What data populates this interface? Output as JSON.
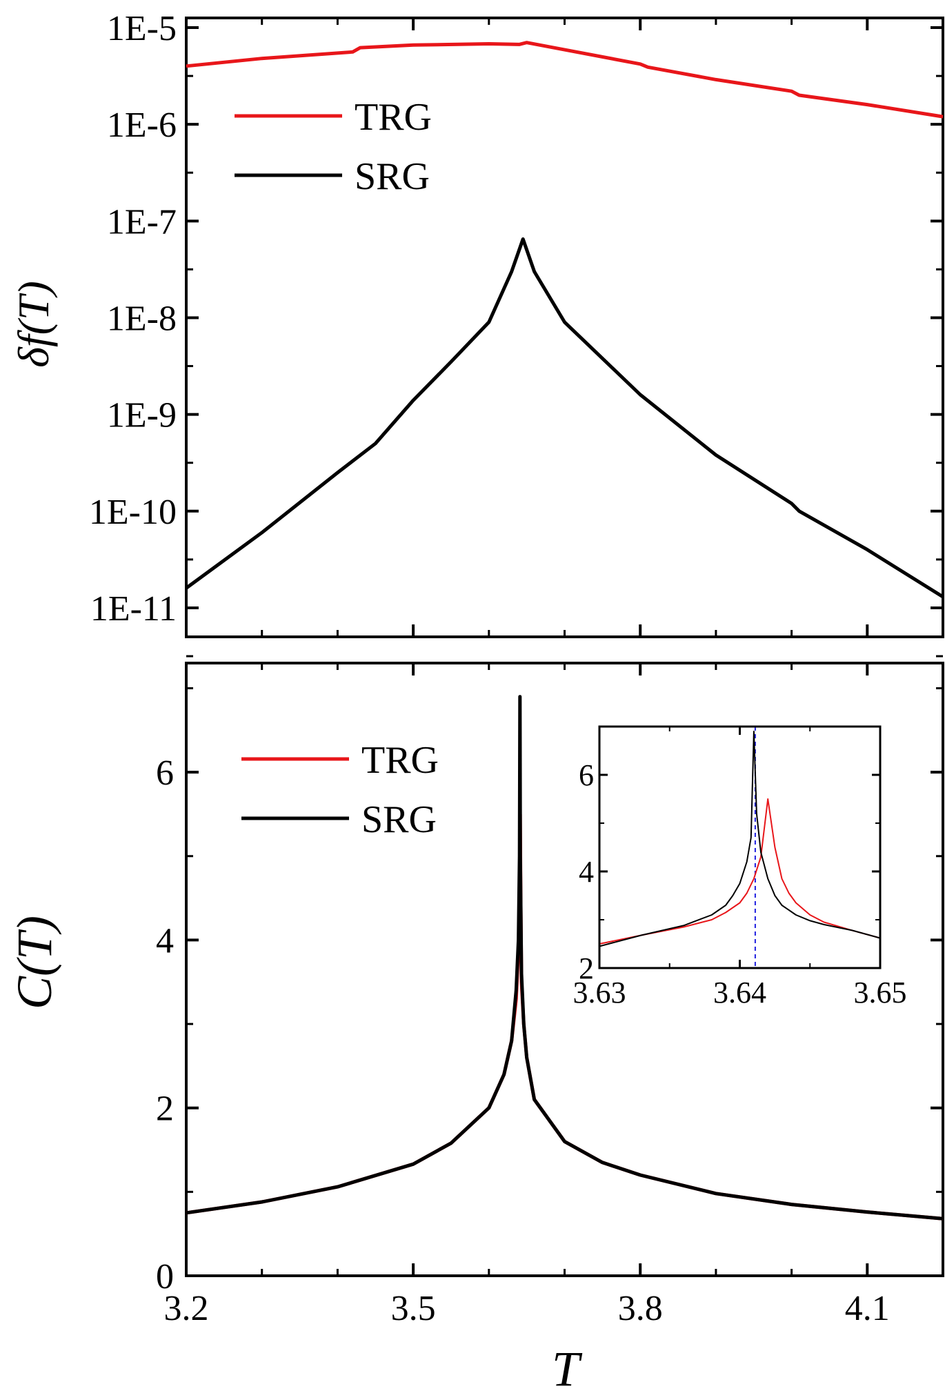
{
  "chart_data": [
    {
      "type": "line",
      "panel": "top",
      "ylabel": "δf(T)",
      "xlabel": "",
      "xlim": [
        3.2,
        4.2
      ],
      "ylim_log10": [
        -11.3,
        -4.9
      ],
      "yscale": "log",
      "y_tick_labels": [
        "1E-5",
        "1E-6",
        "1E-7",
        "1E-8",
        "1E-9",
        "1E-10",
        "1E-11"
      ],
      "y_tick_exponents": [
        -5,
        -6,
        -7,
        -8,
        -9,
        -10,
        -11
      ],
      "x_ticks": [
        3.2,
        3.5,
        3.8,
        4.1
      ],
      "legend": "upper-left",
      "series": [
        {
          "name": "TRG",
          "color": "#e8161a",
          "x": [
            3.2,
            3.3,
            3.42,
            3.43,
            3.5,
            3.6,
            3.64,
            3.65,
            3.7,
            3.8,
            3.81,
            3.9,
            4.0,
            4.01,
            4.1,
            4.2
          ],
          "y": [
            4e-06,
            4.8e-06,
            5.6e-06,
            6.2e-06,
            6.6e-06,
            6.8e-06,
            6.7e-06,
            7e-06,
            5.9e-06,
            4.2e-06,
            3.9e-06,
            2.9e-06,
            2.2e-06,
            2e-06,
            1.6e-06,
            1.2e-06
          ]
        },
        {
          "name": "SRG",
          "color": "#000000",
          "x": [
            3.2,
            3.3,
            3.4,
            3.45,
            3.5,
            3.55,
            3.6,
            3.63,
            3.645,
            3.66,
            3.7,
            3.75,
            3.8,
            3.9,
            4.0,
            4.01,
            4.1,
            4.2
          ],
          "y": [
            1.6e-11,
            6e-11,
            2.5e-10,
            5e-10,
            1.4e-09,
            3.5e-09,
            9e-09,
            3e-08,
            6.5e-08,
            3e-08,
            9e-09,
            3.8e-09,
            1.6e-09,
            3.8e-10,
            1.2e-10,
            1e-10,
            4e-11,
            1.3e-11
          ]
        }
      ]
    },
    {
      "type": "line",
      "panel": "bottom",
      "ylabel": "C(T)",
      "xlabel": "T",
      "xlim": [
        3.2,
        4.2
      ],
      "ylim": [
        0,
        7.3
      ],
      "x_ticks": [
        3.2,
        3.5,
        3.8,
        4.1
      ],
      "x_tick_labels": [
        "3.2",
        "3.5",
        "3.8",
        "4.1"
      ],
      "y_ticks": [
        0,
        2,
        4,
        6
      ],
      "y_tick_labels": [
        "0",
        "2",
        "4",
        "6"
      ],
      "legend": "upper-left",
      "series": [
        {
          "name": "TRG",
          "color": "#e8161a",
          "x": [
            3.2,
            3.3,
            3.4,
            3.5,
            3.55,
            3.6,
            3.62,
            3.63,
            3.636,
            3.639,
            3.6405,
            3.6413,
            3.642,
            3.643,
            3.646,
            3.65,
            3.66,
            3.7,
            3.75,
            3.8,
            3.9,
            4.0,
            4.1,
            4.2
          ],
          "y": [
            0.75,
            0.88,
            1.06,
            1.33,
            1.58,
            2.0,
            2.4,
            2.8,
            3.3,
            3.9,
            4.4,
            5.5,
            4.5,
            3.5,
            3.0,
            2.6,
            2.1,
            1.6,
            1.35,
            1.2,
            0.98,
            0.85,
            0.76,
            0.68
          ]
        },
        {
          "name": "SRG",
          "color": "#000000",
          "x": [
            3.2,
            3.3,
            3.4,
            3.5,
            3.55,
            3.6,
            3.62,
            3.63,
            3.636,
            3.639,
            3.6405,
            3.641,
            3.6415,
            3.643,
            3.646,
            3.65,
            3.66,
            3.7,
            3.75,
            3.8,
            3.9,
            4.0,
            4.1,
            4.2
          ],
          "y": [
            0.75,
            0.88,
            1.06,
            1.33,
            1.58,
            2.0,
            2.4,
            2.8,
            3.4,
            4.0,
            5.0,
            6.9,
            5.0,
            3.6,
            3.0,
            2.6,
            2.1,
            1.6,
            1.35,
            1.2,
            0.98,
            0.85,
            0.76,
            0.68
          ]
        }
      ]
    },
    {
      "type": "line",
      "panel": "inset",
      "xlim": [
        3.63,
        3.65
      ],
      "ylim": [
        2,
        7
      ],
      "x_ticks": [
        3.63,
        3.64,
        3.65
      ],
      "x_tick_labels": [
        "3.63",
        "3.64",
        "3.65"
      ],
      "y_ticks": [
        2,
        4,
        6
      ],
      "y_tick_labels": [
        "2",
        "4",
        "6"
      ],
      "vline_x": 3.6411,
      "vline_color": "#1f1fe0",
      "series": [
        {
          "name": "TRG",
          "color": "#e8161a",
          "x": [
            3.63,
            3.633,
            3.636,
            3.638,
            3.639,
            3.64,
            3.6405,
            3.641,
            3.6415,
            3.642,
            3.6425,
            3.643,
            3.6435,
            3.644,
            3.645,
            3.646,
            3.648,
            3.65
          ],
          "y": [
            2.5,
            2.68,
            2.85,
            3.0,
            3.15,
            3.35,
            3.55,
            3.85,
            4.3,
            5.5,
            4.5,
            3.85,
            3.55,
            3.35,
            3.1,
            2.95,
            2.78,
            2.62
          ]
        },
        {
          "name": "SRG",
          "color": "#000000",
          "x": [
            3.63,
            3.633,
            3.636,
            3.638,
            3.639,
            3.6395,
            3.64,
            3.6405,
            3.6408,
            3.641,
            3.6412,
            3.6415,
            3.642,
            3.6425,
            3.643,
            3.644,
            3.645,
            3.646,
            3.648,
            3.65
          ],
          "y": [
            2.45,
            2.68,
            2.88,
            3.1,
            3.3,
            3.5,
            3.75,
            4.2,
            4.7,
            6.9,
            5.2,
            4.4,
            3.85,
            3.5,
            3.3,
            3.1,
            2.98,
            2.9,
            2.78,
            2.62
          ]
        }
      ]
    }
  ]
}
